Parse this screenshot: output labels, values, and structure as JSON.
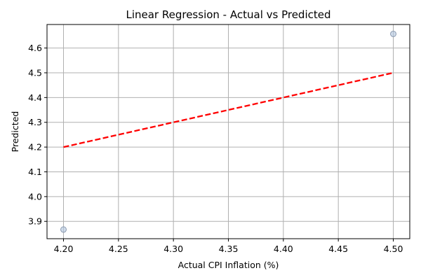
{
  "chart_data": {
    "type": "scatter",
    "title": "Linear Regression - Actual vs Predicted",
    "xlabel": "Actual CPI Inflation (%)",
    "ylabel": "Predicted",
    "xlim": [
      4.185,
      4.515
    ],
    "ylim": [
      3.83,
      4.695
    ],
    "xticks": [
      "4.20",
      "4.25",
      "4.30",
      "4.35",
      "4.40",
      "4.45",
      "4.50"
    ],
    "yticks": [
      "3.9",
      "4.0",
      "4.1",
      "4.2",
      "4.3",
      "4.4",
      "4.5",
      "4.6"
    ],
    "grid": true,
    "points": [
      {
        "x": 4.2,
        "y": 3.867
      },
      {
        "x": 4.5,
        "y": 4.657
      }
    ],
    "reference_line": {
      "x": [
        4.2,
        4.5
      ],
      "y": [
        4.2,
        4.5
      ],
      "style": "dashed"
    },
    "colors": {
      "points_fill": "#b0c4de",
      "points_edge": "#8c9bb0",
      "line": "#ff0000",
      "grid": "#b0b0b0"
    }
  }
}
